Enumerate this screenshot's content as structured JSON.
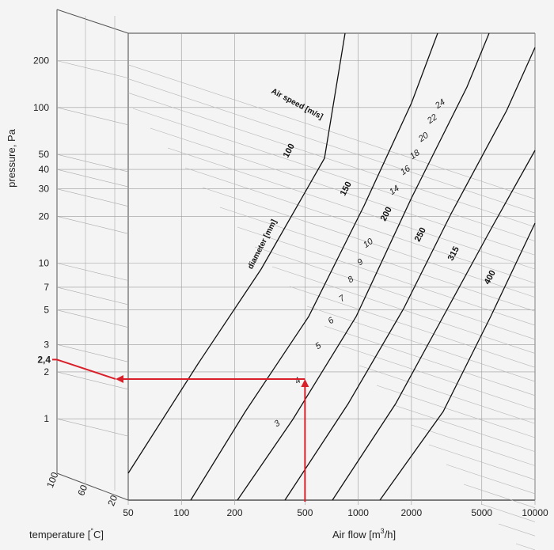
{
  "chart_data": {
    "type": "line",
    "title": "",
    "xlabel": "Air flow [m³/h]",
    "xlabel_parts": [
      "Air flow [m",
      "3",
      "/h]"
    ],
    "ylabel": "pressure, Pa",
    "temperature_label": "temperature [°C]",
    "temperature_label_parts": [
      "temperature [",
      "°",
      "C]"
    ],
    "x_scale": "log",
    "y_scale": "log",
    "xlim": [
      50,
      10000
    ],
    "ylim": [
      0.3,
      300
    ],
    "x_ticks": [
      {
        "value": 50,
        "label": "50"
      },
      {
        "value": 100,
        "label": "100"
      },
      {
        "value": 200,
        "label": "200"
      },
      {
        "value": 500,
        "label": "500"
      },
      {
        "value": 1000,
        "label": "1000"
      },
      {
        "value": 2000,
        "label": "2000"
      },
      {
        "value": 5000,
        "label": "5000"
      },
      {
        "value": 10000,
        "label": "10000"
      }
    ],
    "y_ticks": [
      {
        "value": 1,
        "label": "1"
      },
      {
        "value": 2,
        "label": "2"
      },
      {
        "value": 3,
        "label": "3"
      },
      {
        "value": 5,
        "label": "5"
      },
      {
        "value": 7,
        "label": "7"
      },
      {
        "value": 10,
        "label": "10"
      },
      {
        "value": 20,
        "label": "20"
      },
      {
        "value": 30,
        "label": "30"
      },
      {
        "value": 40,
        "label": "40"
      },
      {
        "value": 50,
        "label": "50"
      },
      {
        "value": 100,
        "label": "100"
      },
      {
        "value": 200,
        "label": "200"
      }
    ],
    "temperature_ticks": [
      {
        "value": 100,
        "label": "100"
      },
      {
        "value": 60,
        "label": "60"
      },
      {
        "value": 20,
        "label": "20"
      }
    ],
    "grid": true,
    "diameter_title": "diameter [mm]",
    "speed_title": "Air speed [m/s]",
    "diameter_series": [
      {
        "name": "100",
        "values": [
          [
            50,
            0.62
          ],
          [
            1380,
            300
          ]
        ]
      },
      {
        "name": "150",
        "values": [
          [
            110,
            0.42
          ],
          [
            3200,
            300
          ]
        ]
      },
      {
        "name": "200",
        "values": [
          [
            250,
            0.32
          ],
          [
            5000,
            300
          ]
        ]
      },
      {
        "name": "250",
        "values": [
          [
            320,
            0.3
          ],
          [
            10000,
            180
          ]
        ]
      },
      {
        "name": "315",
        "values": [
          [
            680,
            0.3
          ],
          [
            10000,
            55
          ]
        ]
      },
      {
        "name": "400",
        "values": [
          [
            1200,
            0.3
          ],
          [
            10000,
            20
          ]
        ]
      }
    ],
    "speed_labels": [
      "3",
      "4",
      "5",
      "6",
      "7",
      "8",
      "9",
      "10",
      "14",
      "16",
      "18",
      "20",
      "22",
      "24"
    ],
    "highlight": {
      "diameter": "200",
      "airflow": 500,
      "airflow_label": "500",
      "pressure": 1.8,
      "corrected_pressure": 2.4,
      "corrected_pressure_label": "2,4",
      "color": "#d9202a"
    }
  }
}
